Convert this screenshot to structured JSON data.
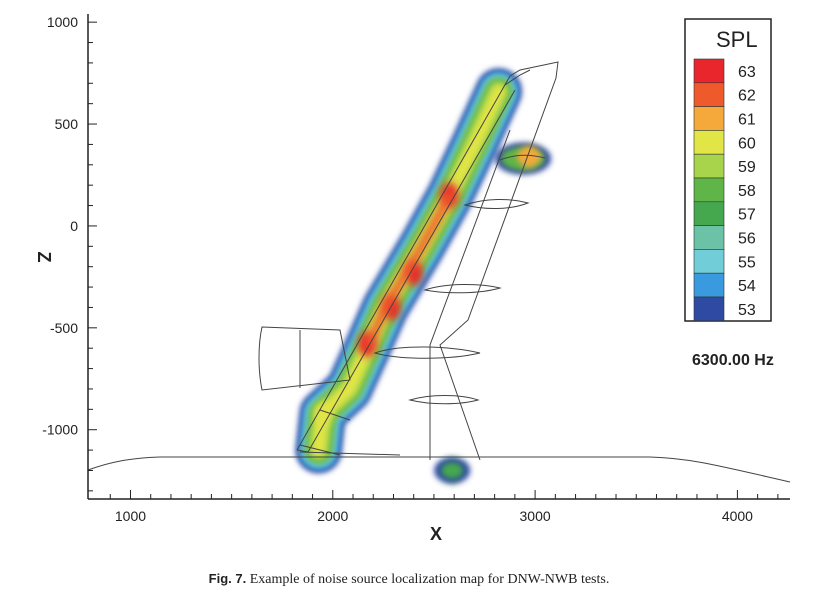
{
  "chart_data": {
    "type": "heatmap",
    "title": "",
    "xlabel": "X",
    "ylabel": "Z",
    "xlim": [
      790,
      4260
    ],
    "ylim": [
      -1340,
      1040
    ],
    "x_ticks": [
      1000,
      2000,
      3000,
      4000
    ],
    "y_ticks": [
      1000,
      500,
      0,
      -500,
      -1000
    ],
    "x_tick_labels": [
      "1000",
      "2000",
      "3000",
      "4000"
    ],
    "y_tick_labels": [
      "1000",
      "500",
      "0",
      "-500",
      "-1000"
    ],
    "legend": {
      "title": "SPL",
      "placement": "top-right",
      "levels": [
        63,
        62,
        61,
        60,
        59,
        58,
        57,
        56,
        55,
        54,
        53
      ],
      "colors": [
        "#e8262b",
        "#ee5a2c",
        "#f4a93a",
        "#e1e545",
        "#a8d44c",
        "#5fb547",
        "#45a84e",
        "#6cc2a6",
        "#71cdd8",
        "#3a9ae0",
        "#2f4aa2"
      ]
    },
    "frequency_label": "6300.00 Hz",
    "source_centerline": [
      {
        "x": 1930,
        "z": -1100,
        "spl": 57
      },
      {
        "x": 1950,
        "z": -920,
        "spl": 59
      },
      {
        "x": 2080,
        "z": -800,
        "spl": 57
      },
      {
        "x": 2180,
        "z": -580,
        "spl": 62
      },
      {
        "x": 2260,
        "z": -400,
        "spl": 61
      },
      {
        "x": 2380,
        "z": -200,
        "spl": 62
      },
      {
        "x": 2440,
        "z": -100,
        "spl": 61
      },
      {
        "x": 2580,
        "z": 150,
        "spl": 62
      },
      {
        "x": 2700,
        "z": 400,
        "spl": 60
      },
      {
        "x": 2820,
        "z": 660,
        "spl": 56
      }
    ],
    "hotspots": [
      {
        "x": 2170,
        "z": -580,
        "spl": 63
      },
      {
        "x": 2290,
        "z": -400,
        "spl": 63
      },
      {
        "x": 2400,
        "z": -230,
        "spl": 63
      },
      {
        "x": 2575,
        "z": 150,
        "spl": 63
      },
      {
        "x": 1955,
        "z": -920,
        "spl": 60
      },
      {
        "x": 2970,
        "z": 340,
        "spl": 61
      },
      {
        "x": 2590,
        "z": -1200,
        "spl": 57
      }
    ]
  },
  "caption": {
    "label": "Fig. 7.",
    "text": " Example of noise source localization map for DNW-NWB tests."
  },
  "colors": {
    "axis": "#222222",
    "outline": "#444444"
  }
}
